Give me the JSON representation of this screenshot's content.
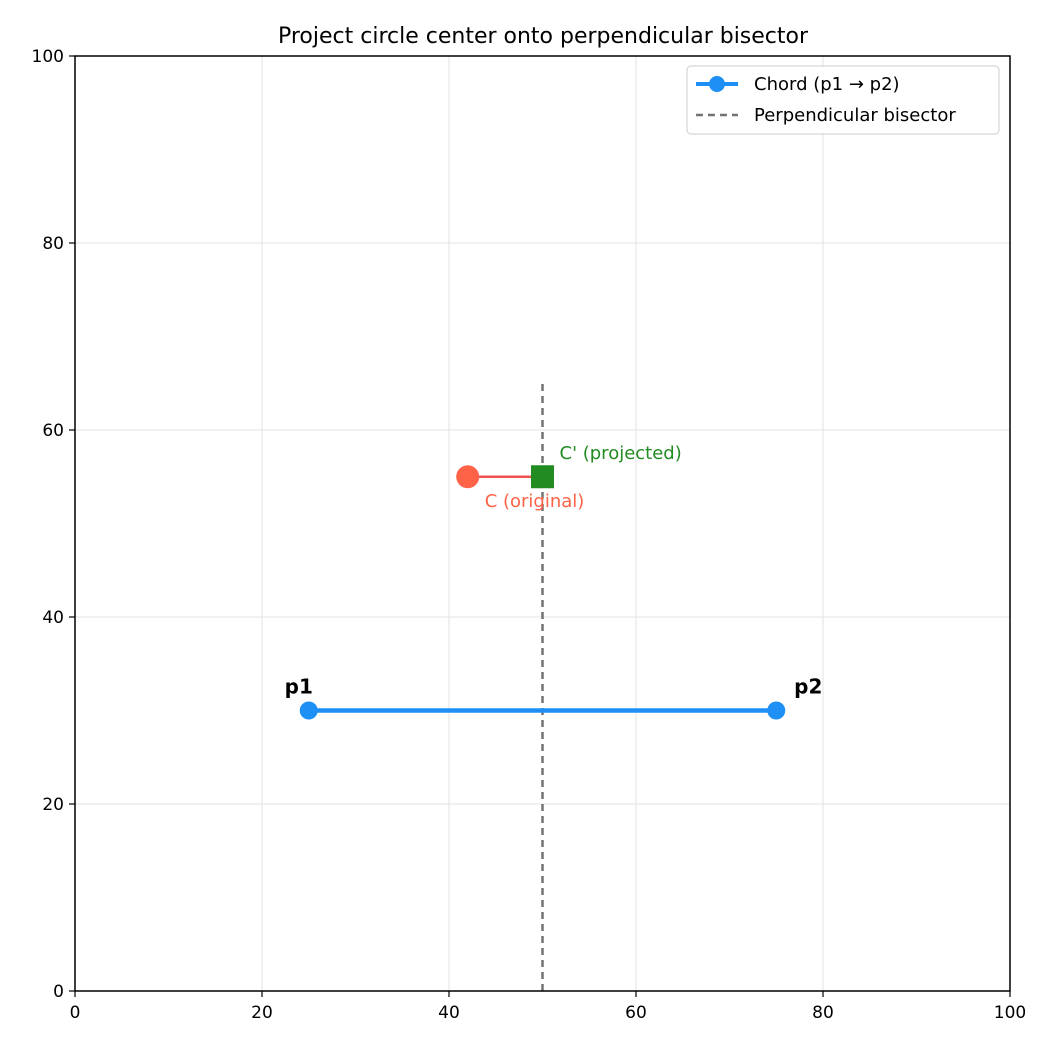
{
  "chart_data": {
    "type": "line",
    "title": "Project circle center onto perpendicular bisector",
    "xlabel": "",
    "ylabel": "",
    "xlim": [
      0,
      100
    ],
    "ylim": [
      0,
      100
    ],
    "xticks": [
      0,
      20,
      40,
      60,
      80,
      100
    ],
    "yticks": [
      0,
      20,
      40,
      60,
      80,
      100
    ],
    "grid": true,
    "legend_position": "top-right",
    "series": [
      {
        "name": "Chord (p1 → p2)",
        "style": "solid-with-markers",
        "color": "#1e8ff5",
        "points": [
          {
            "x": 25,
            "y": 30
          },
          {
            "x": 75,
            "y": 30
          }
        ]
      },
      {
        "name": "Perpendicular bisector",
        "style": "dashed",
        "color": "#737373",
        "points": [
          {
            "x": 50,
            "y": 0
          },
          {
            "x": 50,
            "y": 65
          }
        ]
      }
    ],
    "projection_segment": {
      "color": "#ef5350",
      "points": [
        {
          "x": 42,
          "y": 55
        },
        {
          "x": 50,
          "y": 55
        }
      ]
    },
    "markers": [
      {
        "label": "C (original)",
        "x": 42,
        "y": 55,
        "shape": "circle",
        "color": "#ff6347"
      },
      {
        "label": "C' (projected)",
        "x": 50,
        "y": 55,
        "shape": "square",
        "color": "#228b22"
      }
    ],
    "point_labels": [
      {
        "text": "p1",
        "x": 25,
        "y": 30
      },
      {
        "text": "p2",
        "x": 75,
        "y": 30
      }
    ]
  }
}
